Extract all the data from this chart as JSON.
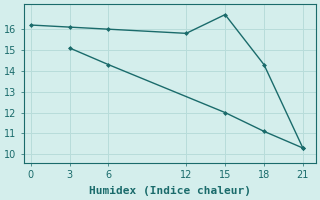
{
  "line1_x": [
    0,
    3,
    6,
    12,
    15,
    18,
    21
  ],
  "line1_y": [
    16.2,
    16.1,
    16.0,
    15.8,
    16.7,
    14.3,
    10.3
  ],
  "line2_x": [
    3,
    6,
    15,
    18,
    21
  ],
  "line2_y": [
    15.1,
    14.3,
    12.0,
    11.1,
    10.3
  ],
  "color": "#1a6b6b",
  "bg_color": "#d4eeec",
  "grid_color": "#b8dcda",
  "xlabel": "Humidex (Indice chaleur)",
  "xlim": [
    -0.5,
    22
  ],
  "ylim": [
    9.6,
    17.2
  ],
  "xticks": [
    0,
    3,
    6,
    12,
    15,
    18,
    21
  ],
  "yticks": [
    10,
    11,
    12,
    13,
    14,
    15,
    16
  ],
  "xlabel_fontsize": 8,
  "tick_fontsize": 7
}
